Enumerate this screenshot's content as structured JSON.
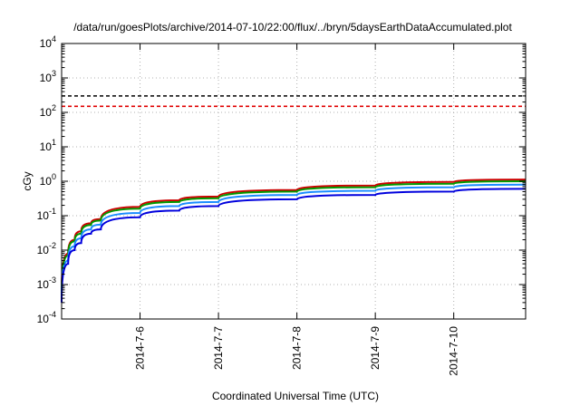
{
  "chart_data": {
    "type": "line",
    "title": "/data/run/goesPlots/archive/2014-07-10/22:00/flux/../bryn/5daysEarthDataAccumulated.plot",
    "xlabel": "Coordinated Universal Time (UTC)",
    "ylabel": "cGy",
    "yscale": "log",
    "ylim_exponents": [
      -4,
      4
    ],
    "y_ticks": [
      {
        "base": "10",
        "exp": "-4"
      },
      {
        "base": "10",
        "exp": "-3"
      },
      {
        "base": "10",
        "exp": "-2"
      },
      {
        "base": "10",
        "exp": "-1"
      },
      {
        "base": "10",
        "exp": "0"
      },
      {
        "base": "10",
        "exp": "1"
      },
      {
        "base": "10",
        "exp": "2"
      },
      {
        "base": "10",
        "exp": "3"
      },
      {
        "base": "10",
        "exp": "4"
      }
    ],
    "xlim": [
      "2014-07-05T00:00",
      "2014-07-10T22:00"
    ],
    "x_ticks": [
      {
        "value": "2014-07-06",
        "label": "2014-7-6"
      },
      {
        "value": "2014-07-07",
        "label": "2014-7-7"
      },
      {
        "value": "2014-07-08",
        "label": "2014-7-8"
      },
      {
        "value": "2014-07-09",
        "label": "2014-7-9"
      },
      {
        "value": "2014-07-10",
        "label": "2014-7-10"
      }
    ],
    "grid": true,
    "reference_lines": [
      {
        "y": 300,
        "color": "#000000",
        "style": "dashed"
      },
      {
        "y": 150,
        "color": "#e00000",
        "style": "dashed"
      }
    ],
    "series": [
      {
        "color": "#cc0000",
        "x": [
          "2014-07-05T00:00",
          "2014-07-05T02:00",
          "2014-07-05T04:00",
          "2014-07-05T06:00",
          "2014-07-05T09:00",
          "2014-07-05T12:00",
          "2014-07-06T00:00",
          "2014-07-06T12:00",
          "2014-07-07T00:00",
          "2014-07-08T00:00",
          "2014-07-09T00:00",
          "2014-07-10T00:00",
          "2014-07-10T22:00"
        ],
        "y": [
          0.0006,
          0.008,
          0.02,
          0.035,
          0.06,
          0.08,
          0.18,
          0.28,
          0.36,
          0.56,
          0.75,
          0.95,
          1.12
        ]
      },
      {
        "color": "#009900",
        "x": [
          "2014-07-05T00:00",
          "2014-07-05T02:00",
          "2014-07-05T04:00",
          "2014-07-05T06:00",
          "2014-07-05T09:00",
          "2014-07-05T12:00",
          "2014-07-06T00:00",
          "2014-07-06T12:00",
          "2014-07-07T00:00",
          "2014-07-08T00:00",
          "2014-07-09T00:00",
          "2014-07-10T00:00",
          "2014-07-10T22:00"
        ],
        "y": [
          0.0005,
          0.007,
          0.018,
          0.03,
          0.054,
          0.072,
          0.16,
          0.25,
          0.32,
          0.5,
          0.67,
          0.85,
          1.0
        ]
      },
      {
        "color": "#1a8cff",
        "x": [
          "2014-07-05T00:00",
          "2014-07-05T02:00",
          "2014-07-05T04:00",
          "2014-07-05T06:00",
          "2014-07-05T09:00",
          "2014-07-05T12:00",
          "2014-07-06T00:00",
          "2014-07-06T12:00",
          "2014-07-07T00:00",
          "2014-07-08T00:00",
          "2014-07-09T00:00",
          "2014-07-10T00:00",
          "2014-07-10T22:00"
        ],
        "y": [
          0.0004,
          0.005,
          0.013,
          0.022,
          0.04,
          0.055,
          0.12,
          0.19,
          0.25,
          0.4,
          0.53,
          0.67,
          0.8
        ]
      },
      {
        "color": "#0000dd",
        "x": [
          "2014-07-05T00:00",
          "2014-07-05T02:00",
          "2014-07-05T04:00",
          "2014-07-05T06:00",
          "2014-07-05T09:00",
          "2014-07-05T12:00",
          "2014-07-06T00:00",
          "2014-07-06T12:00",
          "2014-07-07T00:00",
          "2014-07-08T00:00",
          "2014-07-09T00:00",
          "2014-07-10T00:00",
          "2014-07-10T22:00"
        ],
        "y": [
          0.0003,
          0.004,
          0.01,
          0.016,
          0.03,
          0.04,
          0.09,
          0.14,
          0.19,
          0.3,
          0.4,
          0.5,
          0.6
        ]
      }
    ]
  }
}
